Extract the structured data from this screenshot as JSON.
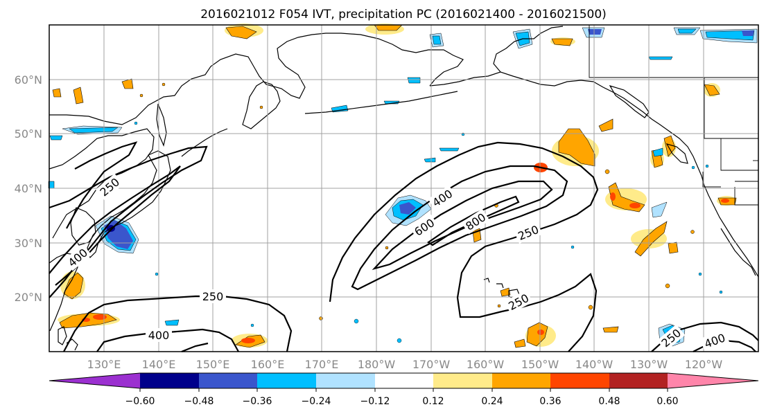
{
  "title": "2016021012 F054 IVT, precipitation PC (2016021400 - 2016021500)",
  "map": {
    "lat_labels": [
      "60°N",
      "50°N",
      "40°N",
      "30°N",
      "20°N"
    ],
    "lon_labels": [
      "130°E",
      "140°E",
      "150°E",
      "160°E",
      "170°E",
      "180°W",
      "170°W",
      "160°W",
      "150°W",
      "140°W",
      "130°W",
      "120°W"
    ],
    "ivt_contour_labels": [
      "250",
      "400",
      "250",
      "400",
      "600",
      "800",
      "250",
      "250",
      "400",
      "250",
      "400"
    ]
  },
  "colorbar": {
    "ticks": [
      "−0.60",
      "−0.48",
      "−0.36",
      "−0.24",
      "−0.12",
      "0.12",
      "0.24",
      "0.36",
      "0.48",
      "0.60"
    ],
    "colors": {
      "under": "#9b30d0",
      "c1": "#00008b",
      "c2": "#3a56cc",
      "c3": "#00bfff",
      "c4": "#b0e2ff",
      "c5": "#ffffff",
      "c6": "#ffeb8a",
      "c7": "#ffa500",
      "c8": "#ff4500",
      "c9": "#b22222",
      "over": "#ff85aa"
    }
  }
}
